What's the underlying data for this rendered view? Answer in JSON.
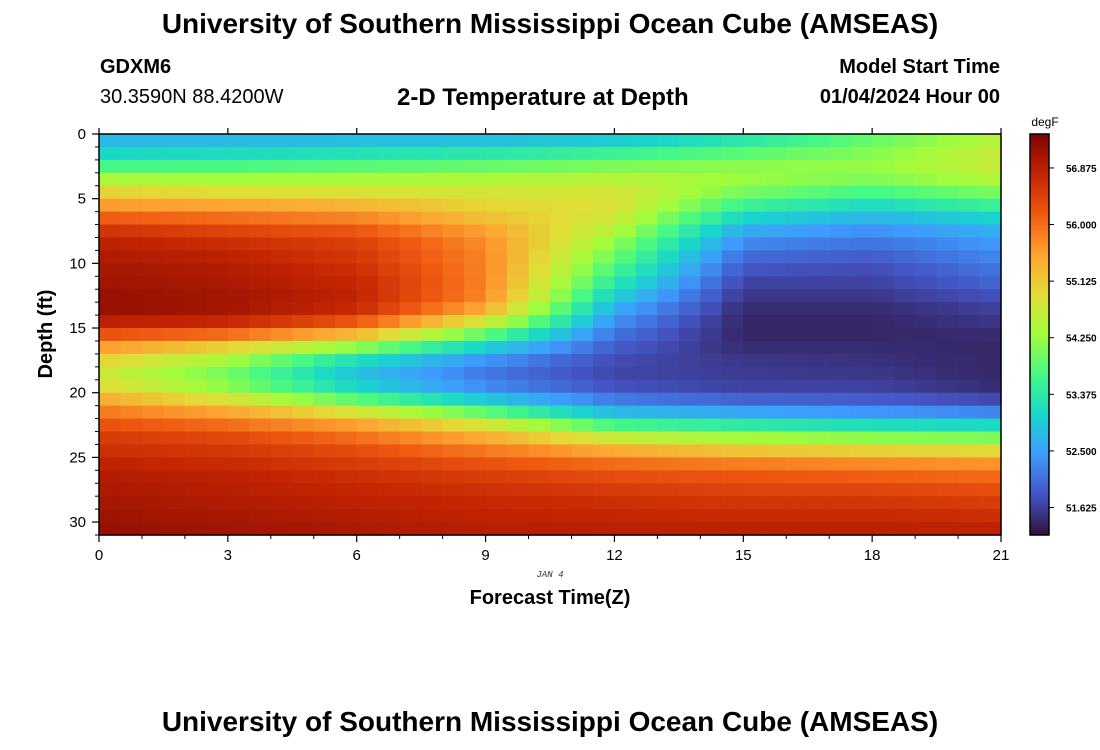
{
  "header": {
    "title": "University of Southern Mississippi Ocean Cube (AMSEAS)",
    "station_id": "GDXM6",
    "coords": "30.3590N  88.4200W",
    "subtitle": "2-D Temperature at Depth",
    "model_start_label": "Model Start Time",
    "model_start_value": "01/04/2024 Hour 00"
  },
  "footer": {
    "title": "University of Southern Mississippi Ocean Cube (AMSEAS)"
  },
  "chart_data": {
    "type": "heatmap",
    "title": "2-D Temperature at Depth",
    "xlabel": "Forecast Time(Z)",
    "ylabel": "Depth (ft)",
    "date_label": "JAN 4",
    "x_ticks": [
      0,
      3,
      6,
      9,
      12,
      15,
      18,
      21
    ],
    "y_ticks": [
      0,
      5,
      10,
      15,
      20,
      25,
      30
    ],
    "xlim": [
      0,
      21
    ],
    "ylim": [
      0,
      31
    ],
    "colorbar": {
      "unit": "degF",
      "min": 51.2,
      "max": 57.4,
      "ticks": [
        51.625,
        52.5,
        53.375,
        54.25,
        55.125,
        56.0,
        56.875
      ],
      "tick_labels": [
        "51.625",
        "52.500",
        "53.375",
        "54.250",
        "55.125",
        "56.000",
        "56.875"
      ]
    },
    "grid": {
      "x_steps": 42,
      "depth_steps": 31,
      "description": "temperature (degF) by forecast hour (columns) and depth in ft (rows)",
      "profile_depths_ft": [
        0,
        1,
        2,
        3,
        4,
        5,
        6,
        7,
        8,
        10,
        12,
        13,
        14,
        15,
        16,
        17,
        18,
        19,
        20,
        21,
        22,
        23,
        24,
        25,
        26,
        28,
        31
      ],
      "profiles": [
        {
          "hour": 0,
          "temps": [
            52.6,
            52.9,
            53.3,
            54.0,
            54.8,
            55.3,
            55.9,
            56.4,
            56.8,
            57.0,
            57.1,
            57.2,
            57.1,
            56.6,
            55.9,
            55.3,
            54.8,
            54.7,
            55.2,
            55.7,
            56.1,
            56.4,
            56.6,
            56.7,
            56.9,
            57.0,
            57.2
          ]
        },
        {
          "hour": 3,
          "temps": [
            52.6,
            52.9,
            53.4,
            54.0,
            54.6,
            55.2,
            55.8,
            56.2,
            56.6,
            56.9,
            57.0,
            57.1,
            57.0,
            56.5,
            55.5,
            54.6,
            54.1,
            53.9,
            54.4,
            55.2,
            55.8,
            56.2,
            56.5,
            56.6,
            56.8,
            56.9,
            57.1
          ]
        },
        {
          "hour": 6,
          "temps": [
            52.6,
            53.0,
            53.5,
            54.1,
            54.6,
            55.1,
            55.6,
            56.0,
            56.4,
            56.6,
            56.8,
            56.8,
            56.6,
            55.8,
            54.8,
            53.5,
            52.9,
            52.8,
            53.3,
            54.3,
            55.3,
            55.8,
            56.2,
            56.4,
            56.6,
            56.8,
            57.0
          ]
        },
        {
          "hour": 9,
          "temps": [
            52.6,
            53.1,
            53.6,
            54.2,
            54.6,
            54.9,
            55.1,
            55.4,
            55.7,
            55.8,
            55.8,
            55.7,
            55.2,
            54.3,
            53.4,
            52.6,
            52.2,
            52.1,
            52.5,
            53.3,
            54.4,
            55.2,
            55.7,
            56.1,
            56.4,
            56.7,
            56.9
          ]
        },
        {
          "hour": 12,
          "temps": [
            52.6,
            53.3,
            53.8,
            54.3,
            54.7,
            54.9,
            54.8,
            54.6,
            54.3,
            53.8,
            53.2,
            52.8,
            52.5,
            52.2,
            52.0,
            51.8,
            51.7,
            51.7,
            51.9,
            52.4,
            53.1,
            54.2,
            55.1,
            55.8,
            56.2,
            56.6,
            56.9
          ]
        },
        {
          "hour": 15,
          "temps": [
            53.1,
            53.6,
            54.0,
            54.3,
            54.2,
            53.8,
            53.3,
            52.8,
            52.4,
            51.9,
            51.6,
            51.5,
            51.4,
            51.4,
            51.4,
            51.5,
            51.6,
            51.6,
            51.7,
            52.2,
            52.9,
            53.9,
            54.8,
            55.6,
            56.1,
            56.5,
            56.9
          ]
        },
        {
          "hour": 18,
          "temps": [
            53.8,
            54.0,
            54.2,
            54.2,
            53.9,
            53.4,
            52.9,
            52.5,
            52.2,
            51.8,
            51.6,
            51.5,
            51.4,
            51.4,
            51.4,
            51.5,
            51.5,
            51.6,
            51.7,
            52.1,
            52.7,
            53.7,
            54.6,
            55.5,
            56.0,
            56.5,
            56.9
          ]
        },
        {
          "hour": 21,
          "temps": [
            54.4,
            54.6,
            54.7,
            54.6,
            54.3,
            53.8,
            53.3,
            52.8,
            52.5,
            52.2,
            51.9,
            51.7,
            51.6,
            51.5,
            51.4,
            51.4,
            51.4,
            51.4,
            51.5,
            51.9,
            52.6,
            53.6,
            54.5,
            55.4,
            55.9,
            56.4,
            56.9
          ]
        }
      ]
    },
    "colormap": [
      "#30123b",
      "#4454c4",
      "#3e9bfe",
      "#18d6cb",
      "#46f884",
      "#a2fc3c",
      "#e1dd37",
      "#fea331",
      "#ef5911",
      "#c22402",
      "#7a0403"
    ]
  }
}
